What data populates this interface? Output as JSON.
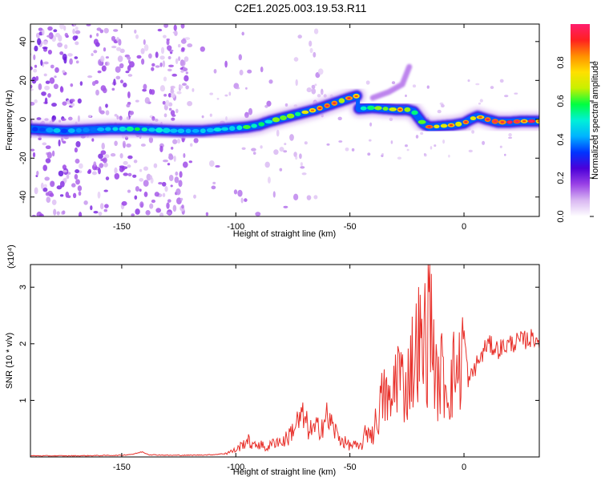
{
  "figure": {
    "title": "C2E1.2025.003.19.53.R11"
  },
  "chart_data": [
    {
      "type": "heatmap",
      "title": "C2E1.2025.003.19.53.R11",
      "xlabel": "Height of straight line (km)",
      "ylabel": "Frequency (Hz)",
      "xlim": [
        -190,
        33
      ],
      "ylim": [
        -50,
        49
      ],
      "xticks": [
        -150,
        -100,
        -50,
        0
      ],
      "yticks": [
        40,
        20,
        0,
        -20,
        -40
      ],
      "grid": false,
      "colorbar": {
        "label": "Normalized spectral amplitude",
        "range": [
          0.0,
          1.0
        ],
        "ticks": [
          0.0,
          0.2,
          0.4,
          0.6,
          0.8
        ],
        "colormap": [
          "#ffffff",
          "#d9b8f2",
          "#9a42e6",
          "#4b00d8",
          "#0034ff",
          "#00b4ff",
          "#00f0d8",
          "#00ff40",
          "#c8f000",
          "#ffe000",
          "#ff9000",
          "#ff2020",
          "#ff1e6e"
        ]
      },
      "ridge": {
        "x": [
          -190,
          -175,
          -165,
          -155,
          -145,
          -135,
          -125,
          -115,
          -105,
          -95,
          -90,
          -85,
          -80,
          -75,
          -70,
          -65,
          -60,
          -55,
          -50,
          -47,
          -46,
          -40,
          -35,
          -30,
          -25,
          -22,
          -20,
          -18,
          -15,
          -10,
          -5,
          0,
          3,
          6,
          10,
          15,
          20,
          25,
          30,
          33
        ],
        "y": [
          -5,
          -6,
          -5.5,
          -5,
          -5,
          -5.5,
          -6,
          -6,
          -5,
          -4,
          -3,
          -1,
          0.5,
          2,
          3.5,
          5,
          7,
          9,
          11,
          12,
          5.5,
          6,
          5.5,
          5,
          5,
          4,
          1,
          -2,
          -4,
          -3.5,
          -3,
          -2,
          0,
          1.5,
          0,
          -1.5,
          -1.5,
          -1,
          -1,
          -1
        ],
        "peak_amplitude": [
          0.4,
          0.42,
          0.4,
          0.45,
          0.55,
          0.5,
          0.45,
          0.5,
          0.55,
          0.58,
          0.6,
          0.6,
          0.62,
          0.65,
          0.7,
          0.75,
          0.78,
          0.8,
          0.85,
          0.8,
          0.62,
          0.65,
          0.7,
          0.88,
          0.8,
          0.7,
          0.6,
          0.65,
          0.85,
          0.8,
          0.78,
          0.8,
          0.85,
          0.88,
          0.9,
          0.92,
          0.92,
          0.9,
          0.88,
          0.85
        ]
      },
      "branch": {
        "x": [
          -40,
          -33,
          -27,
          -24
        ],
        "y": [
          11,
          14,
          18,
          27
        ]
      }
    },
    {
      "type": "line",
      "xlabel": "Height of straight line (km)",
      "ylabel": "SNR (10 * v/v)",
      "y_multiplier": "(x10⁴)",
      "xlim": [
        -190,
        33
      ],
      "ylim": [
        0,
        3.4
      ],
      "xticks": [
        -150,
        -100,
        -50,
        0
      ],
      "yticks": [
        1,
        2,
        3
      ],
      "grid": false,
      "series": [
        {
          "color": "#e8302a",
          "x": [
            -190,
            -180,
            -170,
            -160,
            -150,
            -145,
            -141,
            -138,
            -130,
            -120,
            -110,
            -105,
            -100,
            -97,
            -95,
            -92,
            -90,
            -87,
            -85,
            -82,
            -80,
            -77,
            -75,
            -73,
            -71,
            -70,
            -68,
            -66,
            -63,
            -60,
            -57,
            -55,
            -52,
            -50,
            -48,
            -46,
            -44,
            -42,
            -40,
            -38,
            -36,
            -34,
            -32,
            -30,
            -29,
            -27,
            -25,
            -23,
            -22,
            -20,
            -18,
            -17,
            -16,
            -15,
            -14,
            -13,
            -12,
            -10,
            -8,
            -6,
            -4,
            -2,
            0,
            2,
            5,
            8,
            10,
            15,
            20,
            25,
            30,
            33
          ],
          "y": [
            0.02,
            0.02,
            0.02,
            0.025,
            0.03,
            0.05,
            0.09,
            0.04,
            0.03,
            0.03,
            0.04,
            0.06,
            0.12,
            0.22,
            0.3,
            0.18,
            0.25,
            0.15,
            0.2,
            0.3,
            0.25,
            0.35,
            0.5,
            0.6,
            0.7,
            0.65,
            0.5,
            0.45,
            0.55,
            0.7,
            0.5,
            0.35,
            0.25,
            0.2,
            0.22,
            0.15,
            0.3,
            0.5,
            0.4,
            0.7,
            1.0,
            1.1,
            0.8,
            1.5,
            1.6,
            1.3,
            1.2,
            1.8,
            1.5,
            2.2,
            1.6,
            2.3,
            1.9,
            3.4,
            2.1,
            1.8,
            1.2,
            1.5,
            1.3,
            1.2,
            1.6,
            1.5,
            2.2,
            1.3,
            1.6,
            1.8,
            2.0,
            1.9,
            2.0,
            2.05,
            2.1,
            2.1
          ]
        }
      ]
    }
  ]
}
